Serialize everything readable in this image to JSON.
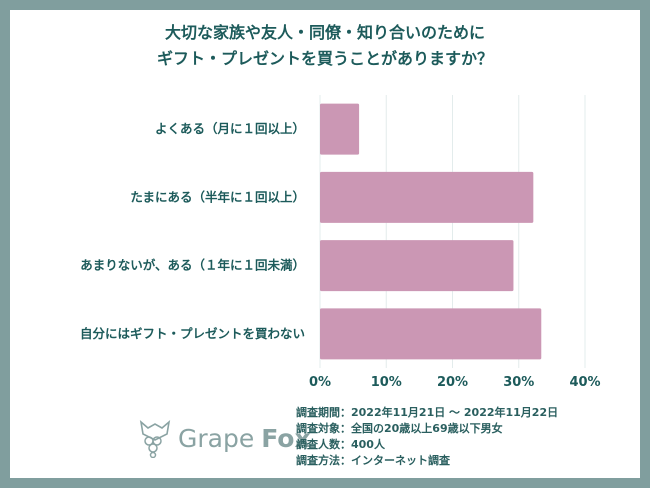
{
  "title_lines": [
    "大切な家族や友人・同僚・知り合いのために",
    "ギフト・プレゼントを買うことがありますか？"
  ],
  "colors": {
    "bar": "#cb97b4",
    "text": "#1d5b5b",
    "frame": "#809e9e",
    "grid": "#e3ecec"
  },
  "chart_data": {
    "type": "bar",
    "orientation": "horizontal",
    "title": "大切な家族や友人・同僚・知り合いのために ギフト・プレゼントを買うことがありますか？",
    "categories": [
      "よくある（月に１回以上）",
      "たまにある（半年に１回以上）",
      "あまりないが、ある（１年に１回未満）",
      "自分にはギフト・プレゼントを買わない"
    ],
    "values": [
      5.9,
      32.2,
      29.2,
      33.4
    ],
    "xlim": [
      0,
      40
    ],
    "ticks": [
      "0%",
      "10%",
      "20%",
      "30%",
      "40%"
    ],
    "grid": true
  },
  "notes": [
    "調査期間：2022年11月21日 ～ 2022年11月22日",
    "調査対象：全国の20歳以上69歳以下男女",
    "調査人数：400人",
    "調査方法：インターネット調査"
  ],
  "logo": {
    "word1": "Grape",
    "word2": "Fox"
  }
}
